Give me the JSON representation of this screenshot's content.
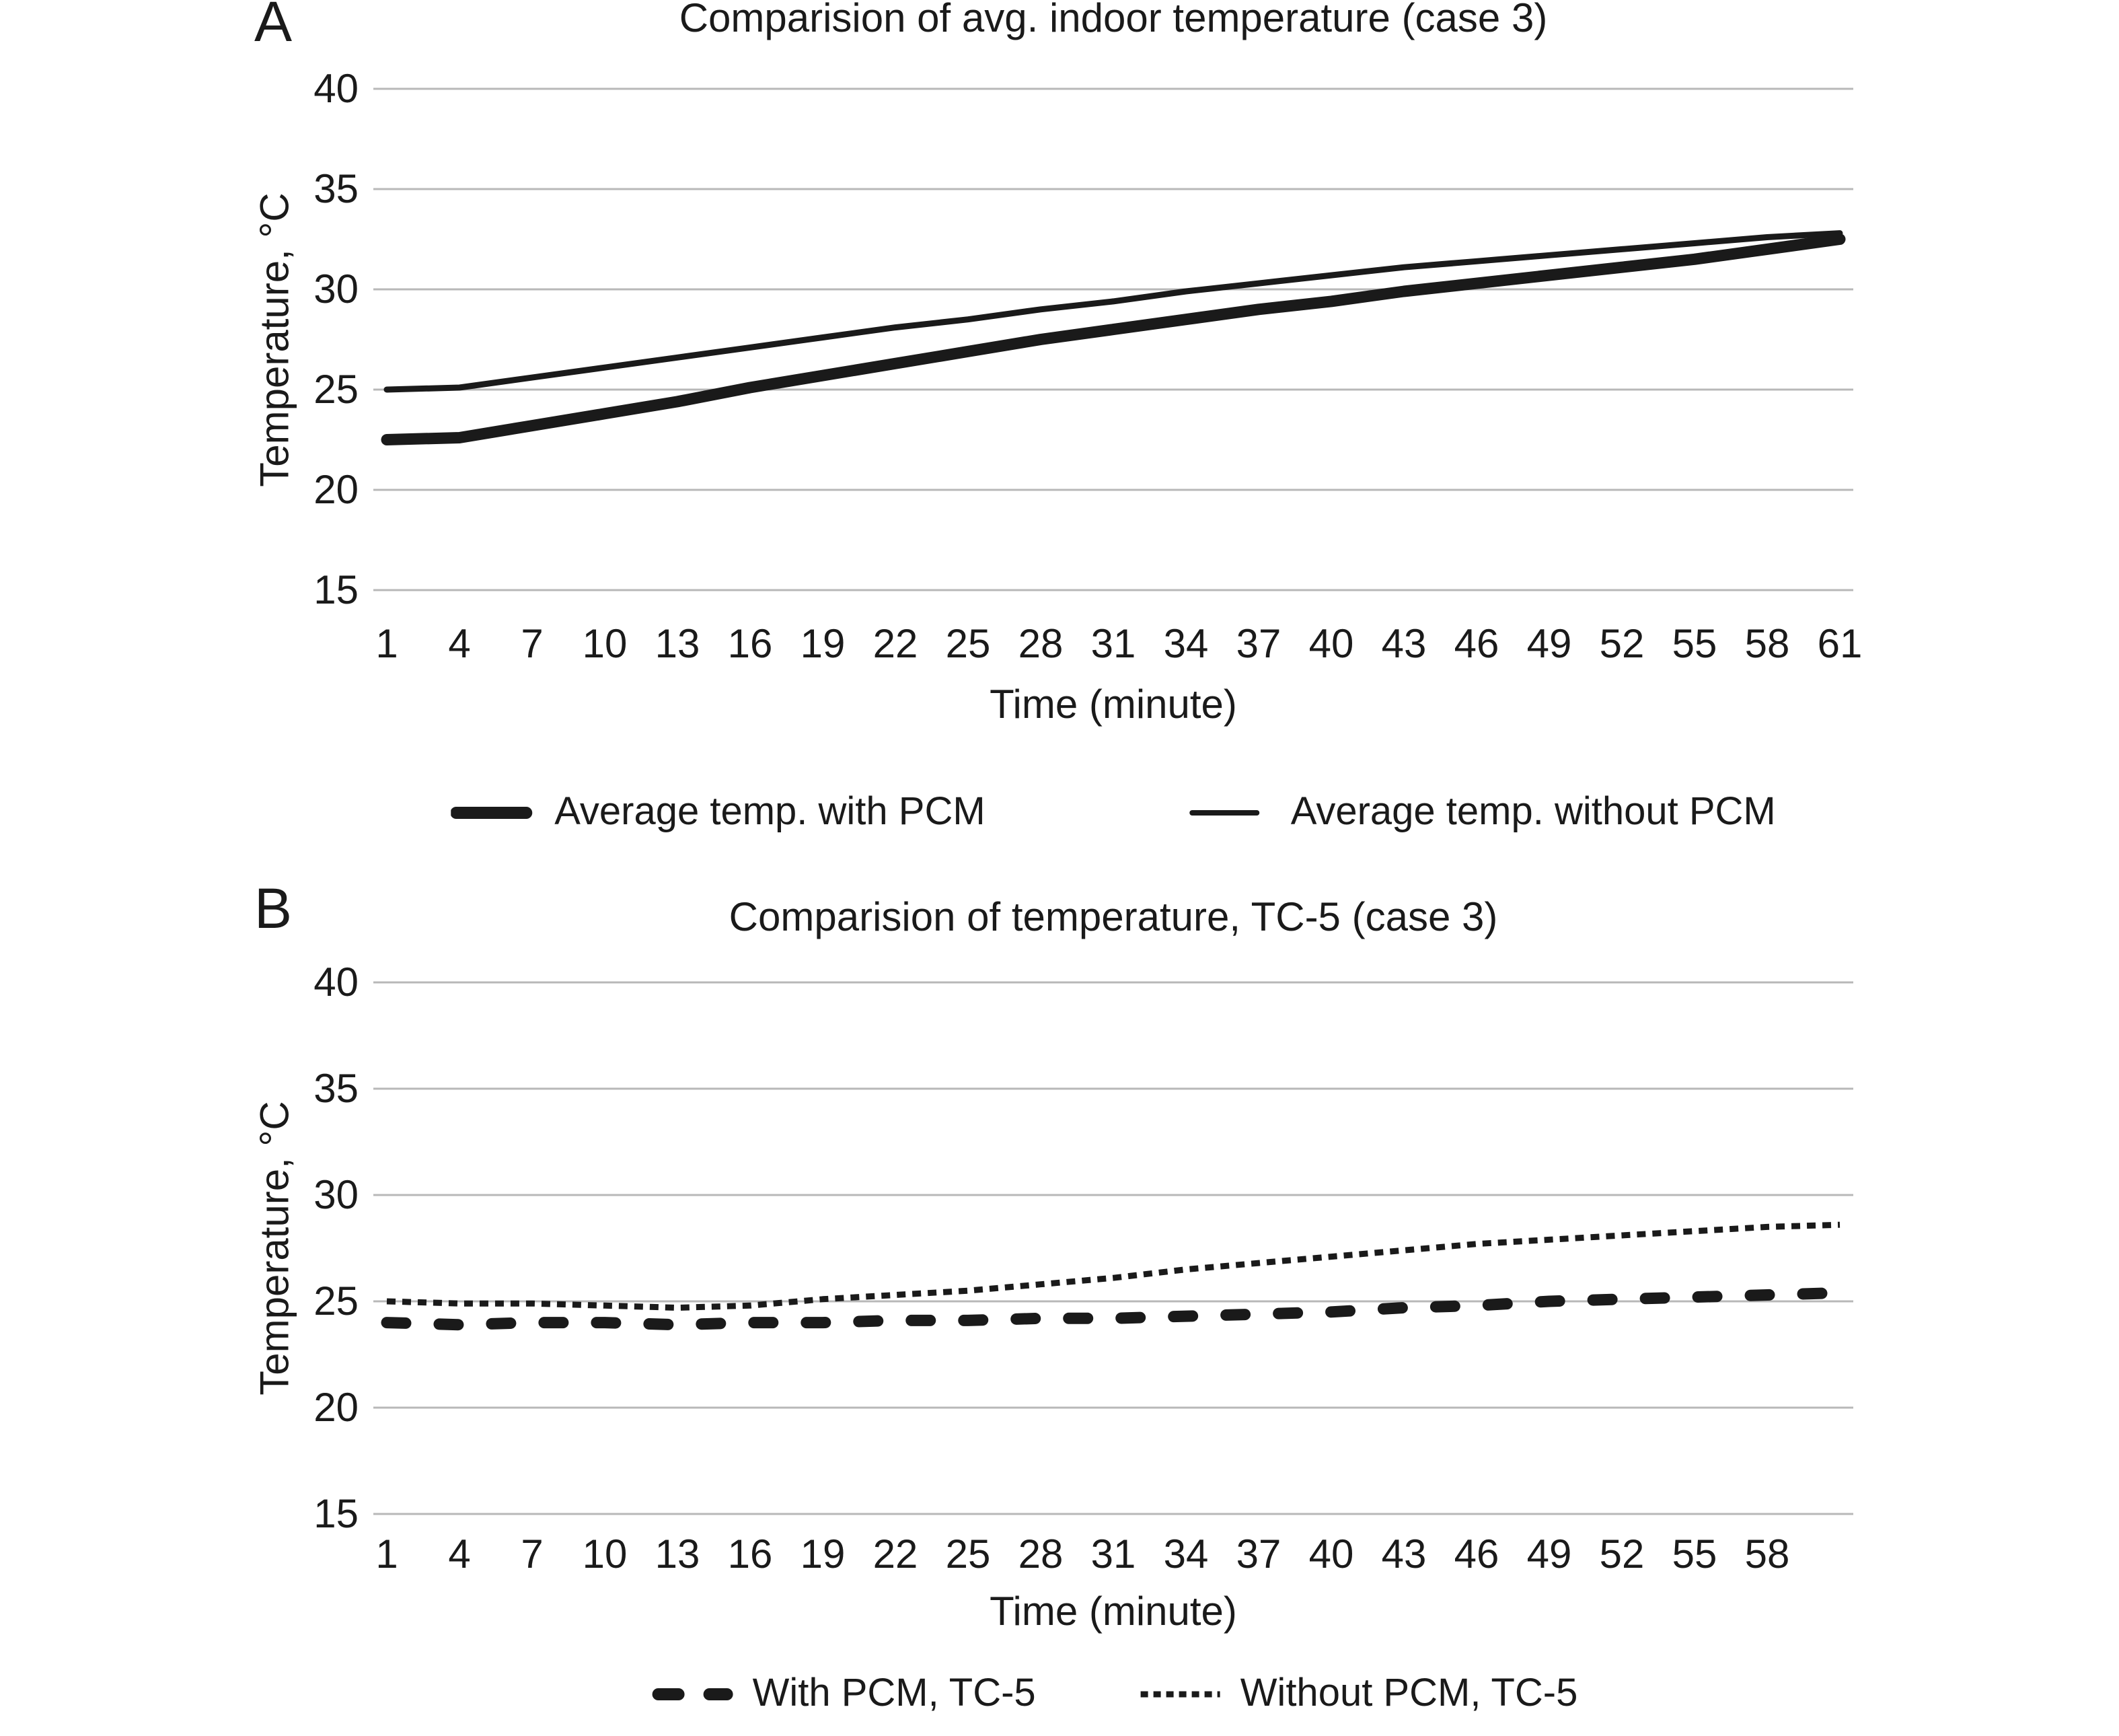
{
  "figure": {
    "background": "#ffffff",
    "text_color": "#1a1a1a",
    "line_color": "#1a1a1a",
    "gridline_color": "#b8b8b8"
  },
  "chart_data": [
    {
      "type": "line",
      "panel_label": "A",
      "title": "Comparision of avg. indoor temperature (case 3)",
      "xlabel": "Time (minute)",
      "ylabel": "Temperature, °C",
      "ylim": [
        15,
        40
      ],
      "y_ticks": [
        "40",
        "35",
        "30",
        "25",
        "20",
        "15"
      ],
      "grid": "horizontal",
      "legend_position": "bottom-center",
      "x": [
        1,
        4,
        7,
        10,
        13,
        16,
        19,
        22,
        25,
        28,
        31,
        34,
        37,
        40,
        43,
        46,
        49,
        52,
        55,
        58,
        61
      ],
      "x_tick_labels": [
        "1",
        "4",
        "7",
        "10",
        "13",
        "16",
        "19",
        "22",
        "25",
        "28",
        "31",
        "34",
        "37",
        "40",
        "43",
        "46",
        "49",
        "52",
        "55",
        "58",
        "61"
      ],
      "series": [
        {
          "name": "Average temp. with PCM",
          "line_style": "solid",
          "thickness": "thick",
          "color": "#1a1a1a",
          "values": [
            22.5,
            22.6,
            23.2,
            23.8,
            24.4,
            25.1,
            25.7,
            26.3,
            26.9,
            27.5,
            28.0,
            28.5,
            29.0,
            29.4,
            29.9,
            30.3,
            30.7,
            31.1,
            31.5,
            32.0,
            32.5
          ]
        },
        {
          "name": "Average temp. without PCM",
          "line_style": "solid",
          "thickness": "thin",
          "color": "#1a1a1a",
          "values": [
            25.0,
            25.1,
            25.6,
            26.1,
            26.6,
            27.1,
            27.6,
            28.1,
            28.5,
            29.0,
            29.4,
            29.9,
            30.3,
            30.7,
            31.1,
            31.4,
            31.7,
            32.0,
            32.3,
            32.6,
            32.8
          ]
        }
      ]
    },
    {
      "type": "line",
      "panel_label": "B",
      "title": "Comparision of temperature, TC-5 (case 3)",
      "xlabel": "Time (minute)",
      "ylabel": "Temperature, °C",
      "ylim": [
        15,
        40
      ],
      "y_ticks": [
        "40",
        "35",
        "30",
        "25",
        "20",
        "15"
      ],
      "grid": "horizontal",
      "legend_position": "bottom-center",
      "x": [
        1,
        4,
        7,
        10,
        13,
        16,
        19,
        22,
        25,
        28,
        31,
        34,
        37,
        40,
        43,
        46,
        49,
        52,
        55,
        58,
        61
      ],
      "x_tick_labels": [
        "1",
        "4",
        "7",
        "10",
        "13",
        "16",
        "19",
        "22",
        "25",
        "28",
        "31",
        "34",
        "37",
        "40",
        "43",
        "46",
        "49",
        "52",
        "55",
        "58"
      ],
      "series": [
        {
          "name": "With PCM, TC-5",
          "line_style": "dashed",
          "thickness": "thick",
          "color": "#1a1a1a",
          "values": [
            24.0,
            23.9,
            24.0,
            24.0,
            23.9,
            24.0,
            24.0,
            24.1,
            24.1,
            24.2,
            24.2,
            24.3,
            24.4,
            24.5,
            24.7,
            24.8,
            25.0,
            25.1,
            25.2,
            25.3,
            25.4
          ]
        },
        {
          "name": "Without PCM, TC-5",
          "line_style": "dotted",
          "thickness": "thin",
          "color": "#1a1a1a",
          "values": [
            25.0,
            24.9,
            24.9,
            24.8,
            24.7,
            24.8,
            25.1,
            25.3,
            25.5,
            25.8,
            26.1,
            26.5,
            26.8,
            27.1,
            27.4,
            27.7,
            27.9,
            28.1,
            28.3,
            28.5,
            28.6
          ]
        }
      ]
    }
  ]
}
